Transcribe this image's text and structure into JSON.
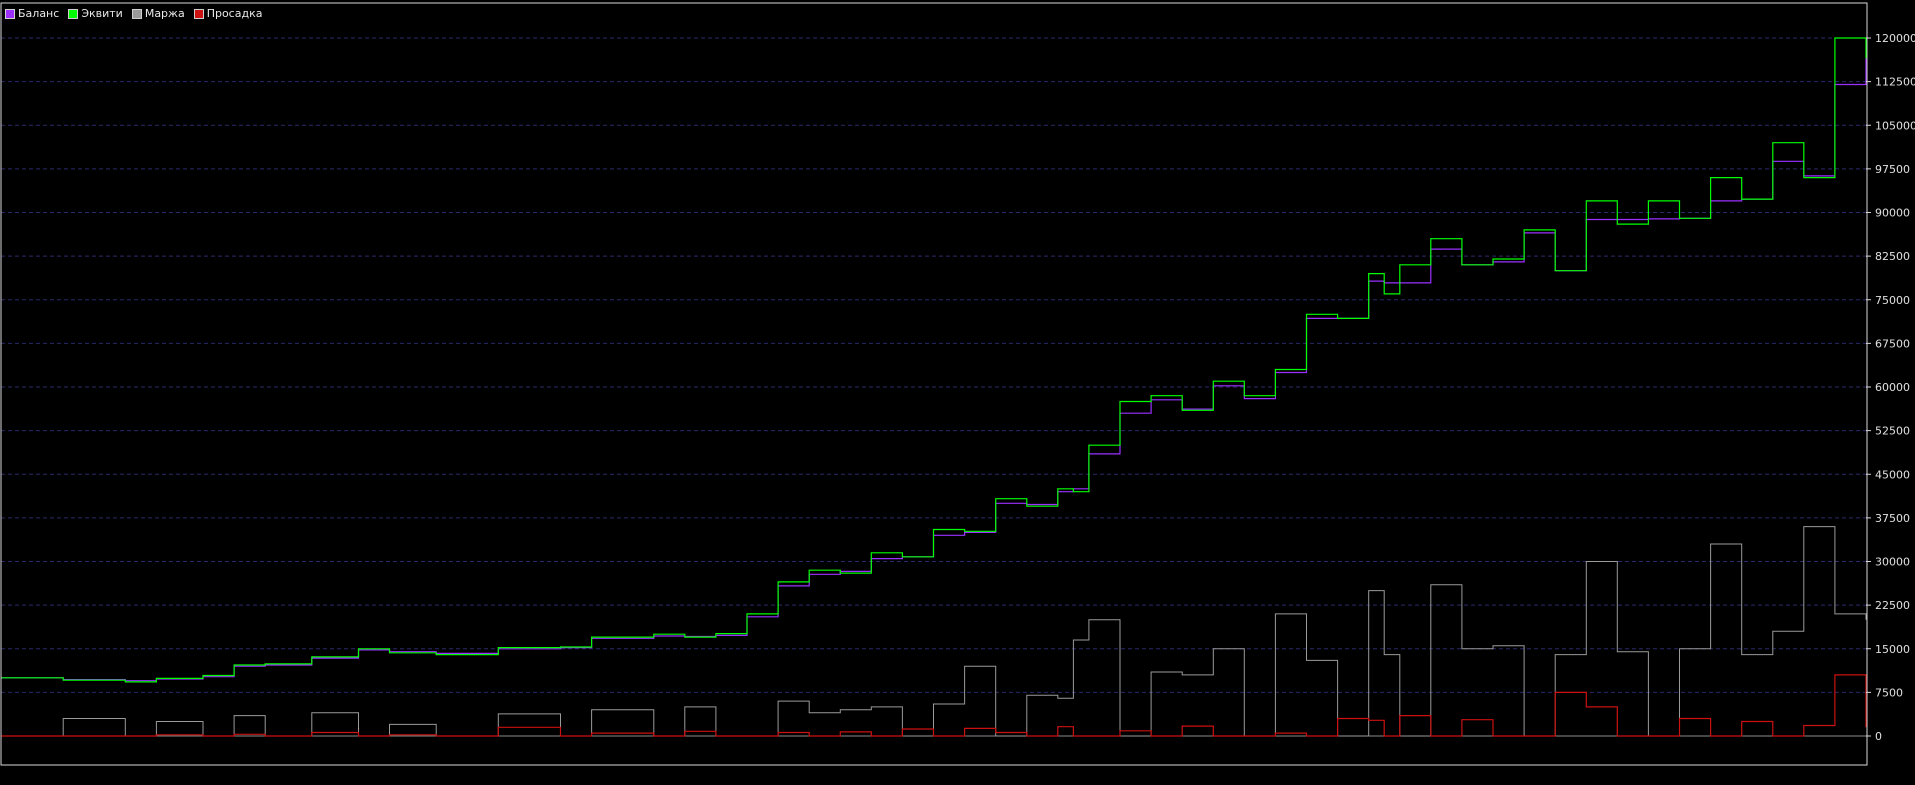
{
  "chart_data": {
    "type": "line",
    "title": "",
    "xlabel": "",
    "ylabel": "",
    "ylim": [
      -1500,
      123000
    ],
    "yticks": [
      0,
      7500,
      15000,
      22500,
      30000,
      37500,
      45000,
      52500,
      60000,
      67500,
      75000,
      82500,
      90000,
      97500,
      105000,
      112500,
      120000
    ],
    "grid": "horizontal dashed",
    "legend_position": "top-left",
    "legend": [
      {
        "label": "Баланс",
        "color": "#9b30ff"
      },
      {
        "label": "Эквити",
        "color": "#00ff00"
      },
      {
        "label": "Маржа",
        "color": "#9a9a9a"
      },
      {
        "label": "Просадка",
        "color": "#cc1111"
      }
    ],
    "x_index": [
      0,
      40,
      80,
      100,
      130,
      150,
      170,
      200,
      230,
      250,
      280,
      320,
      360,
      380,
      420,
      440,
      460,
      480,
      500,
      520,
      540,
      560,
      580,
      600,
      620,
      640,
      660,
      680,
      690,
      700,
      720,
      740,
      760,
      780,
      800,
      820,
      840,
      860,
      880,
      890,
      900,
      920,
      940,
      960,
      980,
      1000,
      1020,
      1040,
      1060,
      1080,
      1100,
      1120,
      1140,
      1160,
      1180,
      1200
    ],
    "series": [
      {
        "name": "Баланс",
        "values": [
          10000,
          9700,
          9500,
          9800,
          10200,
          12000,
          12200,
          13400,
          14800,
          14500,
          14200,
          15000,
          15200,
          16800,
          17200,
          17100,
          17300,
          20500,
          25800,
          27800,
          28300,
          30500,
          30800,
          34500,
          35000,
          40000,
          39800,
          42000,
          42500,
          48500,
          55500,
          57800,
          56200,
          60200,
          58000,
          62500,
          71800,
          71800,
          78200,
          77900,
          77900,
          83700,
          81000,
          81500,
          86500,
          80000,
          88800,
          88800,
          88900,
          89000,
          92000,
          92300,
          98800,
          96300,
          112000,
          116500
        ]
      },
      {
        "name": "Эквити",
        "values": [
          10000,
          9600,
          9300,
          9900,
          10400,
          12200,
          12400,
          13600,
          15000,
          14300,
          14000,
          15200,
          15300,
          17000,
          17500,
          17000,
          17600,
          21000,
          26500,
          28500,
          28000,
          31500,
          30800,
          35500,
          35200,
          40800,
          39500,
          42500,
          42000,
          50000,
          57500,
          58500,
          56000,
          61000,
          58500,
          63000,
          72500,
          71800,
          79500,
          76000,
          81000,
          85500,
          81000,
          82000,
          87000,
          80000,
          92000,
          88000,
          92000,
          89000,
          96000,
          92300,
          102000,
          96000,
          120000,
          116500
        ]
      },
      {
        "name": "Маржа",
        "values": [
          0,
          3000,
          0,
          2500,
          0,
          3500,
          0,
          4000,
          0,
          2000,
          0,
          3800,
          0,
          4500,
          0,
          5000,
          0,
          0,
          6000,
          4000,
          4500,
          5000,
          0,
          5500,
          12000,
          0,
          7000,
          6500,
          16500,
          20000,
          0,
          11000,
          10500,
          15000,
          0,
          21000,
          13000,
          0,
          25000,
          14000,
          0,
          26000,
          15000,
          15500,
          0,
          14000,
          30000,
          14500,
          0,
          15000,
          33000,
          14000,
          18000,
          36000,
          21000,
          20000
        ]
      },
      {
        "name": "Просадка",
        "values": [
          0,
          0,
          0,
          200,
          0,
          300,
          0,
          600,
          0,
          200,
          0,
          1500,
          0,
          500,
          0,
          800,
          0,
          0,
          600,
          0,
          700,
          0,
          1200,
          0,
          1300,
          600,
          0,
          1600,
          0,
          0,
          900,
          0,
          1700,
          0,
          0,
          500,
          0,
          3000,
          2700,
          0,
          3500,
          0,
          2800,
          0,
          0,
          7500,
          5000,
          0,
          0,
          3000,
          0,
          2500,
          0,
          1800,
          10500,
          1500
        ]
      }
    ]
  }
}
